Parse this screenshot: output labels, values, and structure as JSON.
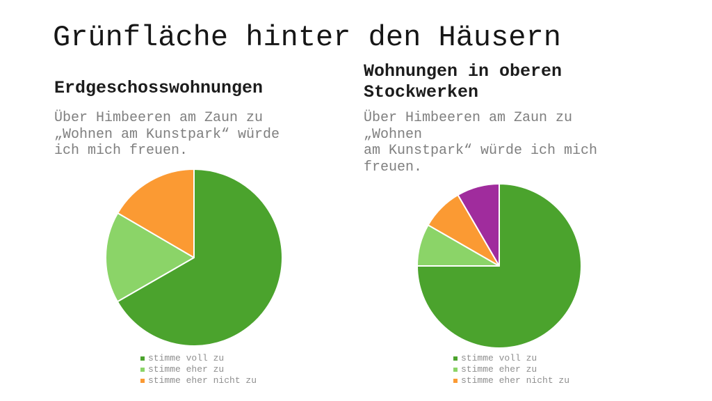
{
  "slide": {
    "title": "Grünfläche hinter den Häusern"
  },
  "panels": [
    {
      "heading": "Erdgeschosswohnungen",
      "question": "Über Himbeeren am Zaun zu\n„Wohnen am Kunstpark“ würde\nich mich freuen."
    },
    {
      "heading": "Wohnungen in oberen\nStockwerken",
      "question": "Über Himbeeren am Zaun zu\n„Wohnen\nam Kunstpark“ würde ich mich\nfreuen."
    }
  ],
  "chart_data": [
    {
      "type": "pie",
      "title": "Erdgeschosswohnungen",
      "question": "Über Himbeeren am Zaun zu „Wohnen am Kunstpark“ würde ich mich freuen.",
      "start_angle_deg": 0,
      "direction": "clockwise",
      "legend_position": "below",
      "separator_color": "#ffffff",
      "slices": [
        {
          "label": "stimme voll zu",
          "percent": 66.7,
          "color": "#4ba32d",
          "in_legend": true
        },
        {
          "label": "stimme eher zu",
          "percent": 16.7,
          "color": "#8bd468",
          "in_legend": true
        },
        {
          "label": "stimme eher nicht zu",
          "percent": 16.6,
          "color": "#fb9a33",
          "in_legend": true
        }
      ]
    },
    {
      "type": "pie",
      "title": "Wohnungen in oberen Stockwerken",
      "question": "Über Himbeeren am Zaun zu „Wohnen am Kunstpark“ würde ich mich freuen.",
      "start_angle_deg": 0,
      "direction": "clockwise",
      "legend_position": "below",
      "separator_color": "#ffffff",
      "slices": [
        {
          "label": "stimme voll zu",
          "percent": 75.0,
          "color": "#4ba32d",
          "in_legend": true
        },
        {
          "label": "stimme eher zu",
          "percent": 8.3,
          "color": "#8bd468",
          "in_legend": true
        },
        {
          "label": "stimme eher nicht zu",
          "percent": 8.3,
          "color": "#fb9a33",
          "in_legend": true
        },
        {
          "label": "",
          "percent": 8.4,
          "color": "#a02c9d",
          "in_legend": false
        }
      ]
    }
  ]
}
